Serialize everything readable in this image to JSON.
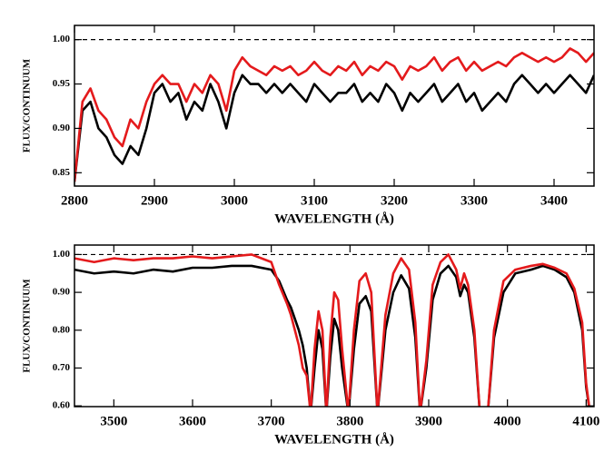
{
  "chart_data": [
    {
      "type": "line",
      "x_label": "WAVELENGTH (Å)",
      "y_label": "FLUX/CONTINUUM",
      "xlim": [
        2800,
        3450
      ],
      "ylim": [
        0.835,
        1.016
      ],
      "xticks": [
        2800,
        2900,
        3000,
        3100,
        3200,
        3300,
        3400
      ],
      "yticks": [
        {
          "value": 0.85,
          "label": "0.85"
        },
        {
          "value": 0.9,
          "label": "0.90"
        },
        {
          "value": 0.95,
          "label": "0.95"
        },
        {
          "value": 1,
          "label": "1.00"
        }
      ],
      "hline": 1,
      "x": [
        2800,
        2810,
        2820,
        2830,
        2840,
        2850,
        2860,
        2870,
        2880,
        2890,
        2900,
        2910,
        2920,
        2930,
        2940,
        2950,
        2960,
        2970,
        2980,
        2990,
        3000,
        3010,
        3020,
        3030,
        3040,
        3050,
        3060,
        3070,
        3080,
        3090,
        3100,
        3110,
        3120,
        3130,
        3140,
        3150,
        3160,
        3170,
        3180,
        3190,
        3200,
        3210,
        3220,
        3230,
        3240,
        3250,
        3260,
        3270,
        3280,
        3290,
        3300,
        3310,
        3320,
        3330,
        3340,
        3350,
        3360,
        3370,
        3380,
        3390,
        3400,
        3410,
        3420,
        3430,
        3440,
        3450
      ],
      "series": [
        {
          "color": "#000000",
          "values": [
            0.84,
            0.92,
            0.93,
            0.9,
            0.89,
            0.87,
            0.86,
            0.88,
            0.87,
            0.9,
            0.94,
            0.95,
            0.93,
            0.94,
            0.91,
            0.93,
            0.92,
            0.95,
            0.93,
            0.9,
            0.94,
            0.96,
            0.95,
            0.95,
            0.94,
            0.95,
            0.94,
            0.95,
            0.94,
            0.93,
            0.95,
            0.94,
            0.93,
            0.94,
            0.94,
            0.95,
            0.93,
            0.94,
            0.93,
            0.95,
            0.94,
            0.92,
            0.94,
            0.93,
            0.94,
            0.95,
            0.93,
            0.94,
            0.95,
            0.93,
            0.94,
            0.92,
            0.93,
            0.94,
            0.93,
            0.95,
            0.96,
            0.95,
            0.94,
            0.95,
            0.94,
            0.95,
            0.96,
            0.95,
            0.94,
            0.96
          ]
        },
        {
          "color": "#e41a1c",
          "values": [
            0.84,
            0.93,
            0.945,
            0.92,
            0.91,
            0.89,
            0.88,
            0.91,
            0.9,
            0.93,
            0.95,
            0.96,
            0.95,
            0.95,
            0.93,
            0.95,
            0.94,
            0.96,
            0.95,
            0.92,
            0.965,
            0.98,
            0.97,
            0.965,
            0.96,
            0.97,
            0.965,
            0.97,
            0.96,
            0.965,
            0.975,
            0.965,
            0.96,
            0.97,
            0.965,
            0.975,
            0.96,
            0.97,
            0.965,
            0.975,
            0.97,
            0.955,
            0.97,
            0.965,
            0.97,
            0.98,
            0.965,
            0.975,
            0.98,
            0.965,
            0.975,
            0.965,
            0.97,
            0.975,
            0.97,
            0.98,
            0.985,
            0.98,
            0.975,
            0.98,
            0.975,
            0.98,
            0.99,
            0.985,
            0.975,
            0.985
          ]
        }
      ]
    },
    {
      "type": "line",
      "x_label": "WAVELENGTH (Å)",
      "y_label": "FLUX/CONTINUUM",
      "xlim": [
        3450,
        4110
      ],
      "ylim": [
        0.598,
        1.025
      ],
      "xticks": [
        3500,
        3600,
        3700,
        3800,
        3900,
        4000,
        4100
      ],
      "yticks": [
        {
          "value": 0.6,
          "label": "0.60"
        },
        {
          "value": 0.7,
          "label": "0.70"
        },
        {
          "value": 0.8,
          "label": "0.80"
        },
        {
          "value": 0.9,
          "label": "0.90"
        },
        {
          "value": 1,
          "label": "1.00"
        }
      ],
      "hline": 1,
      "x": [
        3450,
        3475,
        3500,
        3525,
        3550,
        3575,
        3600,
        3625,
        3650,
        3675,
        3700,
        3710,
        3720,
        3725,
        3730,
        3735,
        3740,
        3745,
        3750,
        3755,
        3760,
        3765,
        3770,
        3775,
        3780,
        3785,
        3790,
        3798,
        3805,
        3812,
        3820,
        3827,
        3835,
        3845,
        3855,
        3865,
        3875,
        3883,
        3889,
        3897,
        3905,
        3915,
        3925,
        3935,
        3940,
        3945,
        3950,
        3958,
        3965,
        3975,
        3983,
        3995,
        4010,
        4030,
        4045,
        4060,
        4075,
        4085,
        4095,
        4100,
        4105,
        4110
      ],
      "series": [
        {
          "color": "#000000",
          "values": [
            0.96,
            0.95,
            0.955,
            0.95,
            0.96,
            0.955,
            0.965,
            0.965,
            0.97,
            0.97,
            0.96,
            0.93,
            0.88,
            0.86,
            0.83,
            0.8,
            0.76,
            0.7,
            0.58,
            0.7,
            0.8,
            0.75,
            0.58,
            0.73,
            0.83,
            0.8,
            0.7,
            0.58,
            0.75,
            0.87,
            0.89,
            0.85,
            0.58,
            0.8,
            0.9,
            0.945,
            0.91,
            0.78,
            0.58,
            0.7,
            0.88,
            0.95,
            0.97,
            0.94,
            0.89,
            0.92,
            0.9,
            0.78,
            0.58,
            0.58,
            0.78,
            0.9,
            0.95,
            0.96,
            0.97,
            0.96,
            0.94,
            0.9,
            0.8,
            0.65,
            0.58,
            0.58
          ]
        },
        {
          "color": "#e41a1c",
          "values": [
            0.99,
            0.98,
            0.99,
            0.985,
            0.99,
            0.99,
            0.995,
            0.99,
            0.995,
            1.0,
            0.98,
            0.92,
            0.87,
            0.84,
            0.8,
            0.76,
            0.7,
            0.68,
            0.58,
            0.75,
            0.85,
            0.8,
            0.58,
            0.78,
            0.9,
            0.88,
            0.75,
            0.58,
            0.8,
            0.93,
            0.95,
            0.9,
            0.58,
            0.84,
            0.95,
            0.99,
            0.96,
            0.82,
            0.58,
            0.72,
            0.92,
            0.98,
            1.0,
            0.96,
            0.91,
            0.95,
            0.92,
            0.8,
            0.58,
            0.58,
            0.8,
            0.93,
            0.96,
            0.97,
            0.975,
            0.965,
            0.95,
            0.91,
            0.82,
            0.66,
            0.58,
            0.58
          ]
        }
      ]
    }
  ]
}
